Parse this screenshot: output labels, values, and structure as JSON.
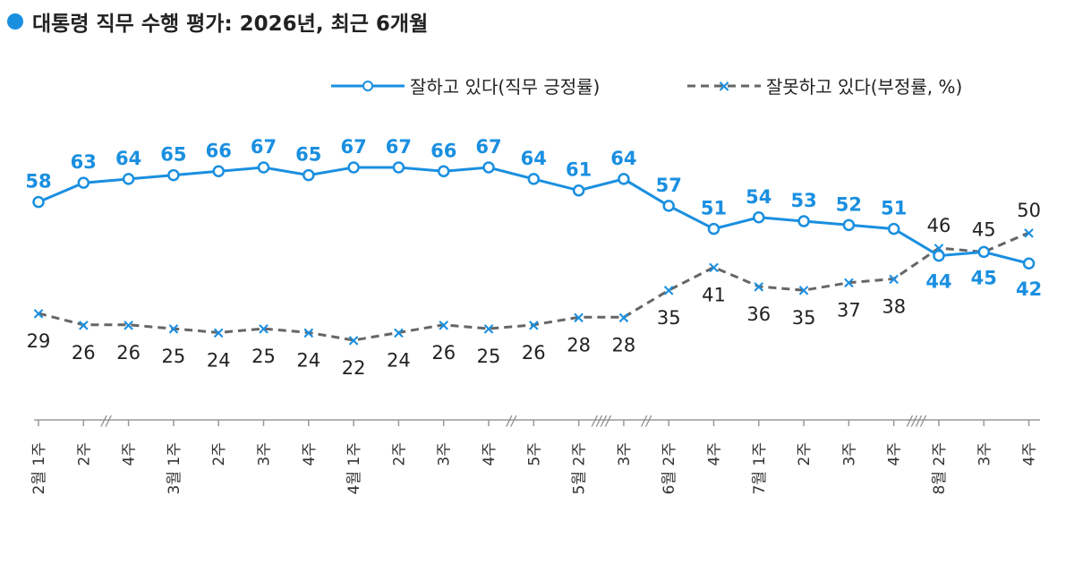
{
  "header": {
    "title": "대통령 직무 수행 평가: 2026년, 최근 6개월"
  },
  "chart_data": {
    "type": "line",
    "categories": [
      {
        "week": "1주",
        "month": "2월"
      },
      {
        "week": "2주",
        "month": ""
      },
      {
        "week": "4주",
        "month": ""
      },
      {
        "week": "1주",
        "month": "3월"
      },
      {
        "week": "2주",
        "month": ""
      },
      {
        "week": "3주",
        "month": ""
      },
      {
        "week": "4주",
        "month": ""
      },
      {
        "week": "1주",
        "month": "4월"
      },
      {
        "week": "2주",
        "month": ""
      },
      {
        "week": "3주",
        "month": ""
      },
      {
        "week": "4주",
        "month": ""
      },
      {
        "week": "5주",
        "month": ""
      },
      {
        "week": "2주",
        "month": "5월"
      },
      {
        "week": "3주",
        "month": ""
      },
      {
        "week": "2주",
        "month": "6월"
      },
      {
        "week": "4주",
        "month": ""
      },
      {
        "week": "1주",
        "month": "7월"
      },
      {
        "week": "2주",
        "month": ""
      },
      {
        "week": "3주",
        "month": ""
      },
      {
        "week": "4주",
        "month": ""
      },
      {
        "week": "2주",
        "month": "8월"
      },
      {
        "week": "3주",
        "month": ""
      },
      {
        "week": "4주",
        "month": ""
      }
    ],
    "series": [
      {
        "name": "잘하고 있다(직무 긍정률)",
        "color": "#1a8fe0",
        "style": "solid-circle",
        "values": [
          58,
          63,
          64,
          65,
          66,
          67,
          65,
          67,
          67,
          66,
          67,
          64,
          61,
          64,
          57,
          51,
          54,
          53,
          52,
          51,
          44,
          45,
          42
        ]
      },
      {
        "name": "잘못하고 있다(부정률, %)",
        "color": "#666666",
        "marker_color": "#1a8fe0",
        "style": "dashed-x",
        "values": [
          29,
          26,
          26,
          25,
          24,
          25,
          24,
          22,
          24,
          26,
          25,
          26,
          28,
          28,
          35,
          41,
          36,
          35,
          37,
          38,
          46,
          45,
          50
        ]
      }
    ],
    "axis_breaks": [
      "//",
      "//",
      "////",
      "//",
      "////"
    ],
    "ylim": [
      15,
      75
    ],
    "grid": false,
    "legend_position": "top-right"
  }
}
